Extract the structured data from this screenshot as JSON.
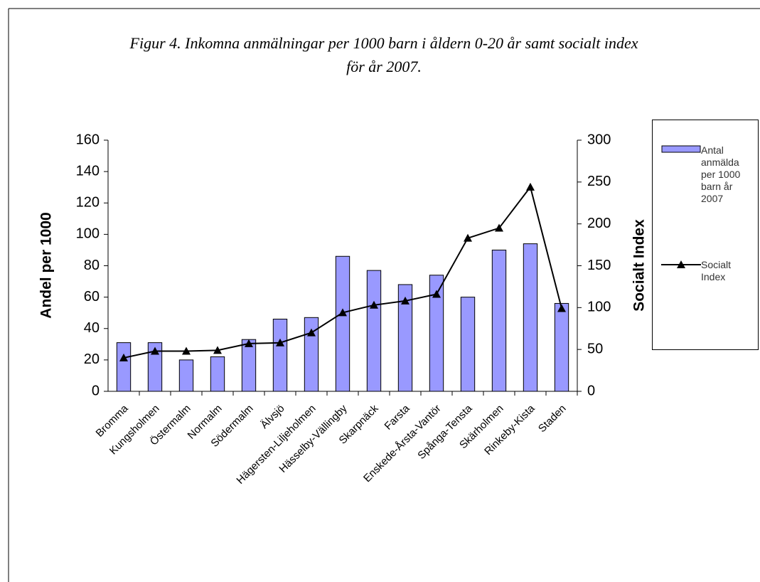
{
  "chart_data": {
    "type": "bar-line",
    "title": "Figur 4. Inkomna anmälningar per 1000 barn i åldern 0-20 år samt socialt index för år 2007.",
    "ylabel": "Andel per 1000",
    "y2label": "Socialt Index",
    "categories": [
      "Bromma",
      "Kungsholmen",
      "Östermalm",
      "Normalm",
      "Södermalm",
      "Älvsjö",
      "Hägersten-Liljeholmen",
      "Hässelby-Vällingby",
      "Skarpnäck",
      "Farsta",
      "Enskede-Årsta-Vantör",
      "Spånga-Tensta",
      "Skärholmen",
      "Rinkeby-Kista",
      "Staden"
    ],
    "series": [
      {
        "name": "Antal anmälda per 1000 barn år 2007",
        "type": "bar",
        "color": "#9999ff",
        "values": [
          31,
          31,
          20,
          22,
          33,
          46,
          47,
          86,
          77,
          68,
          74,
          60,
          90,
          94,
          56
        ]
      },
      {
        "name": "Socialt Index",
        "type": "line",
        "axis": "y2",
        "color": "#000000",
        "values": [
          40,
          48,
          48,
          49,
          57,
          58,
          70,
          94,
          103,
          108,
          116,
          183,
          195,
          244,
          99
        ]
      }
    ],
    "ylim": [
      0,
      160
    ],
    "yticks": [
      0,
      20,
      40,
      60,
      80,
      100,
      120,
      140,
      160
    ],
    "y2lim": [
      0,
      300
    ],
    "y2ticks": [
      0,
      50,
      100,
      150,
      200,
      250,
      300
    ],
    "legend": "right"
  }
}
